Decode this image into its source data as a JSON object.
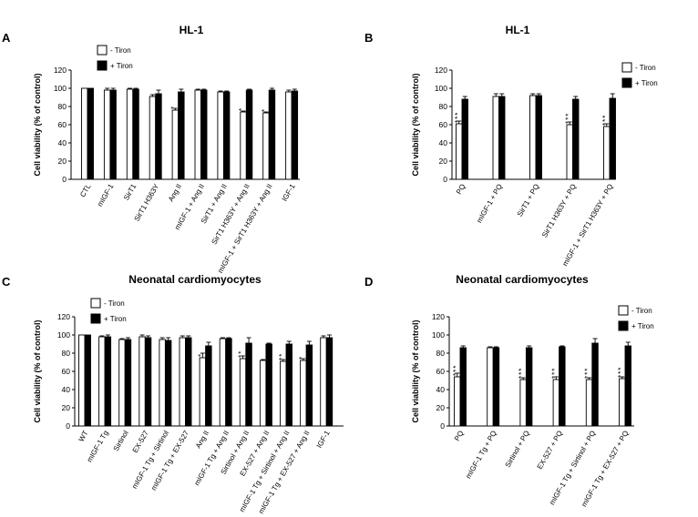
{
  "figure": {
    "legend": {
      "minus": "- Tiron",
      "plus": "+ Tiron"
    },
    "colors": {
      "minus": "#ffffff",
      "plus": "#000000",
      "edge": "#000000"
    }
  },
  "chart_data": [
    {
      "panel": "A",
      "title": "HL-1",
      "type": "bar",
      "ylabel": "Cell viability (% of control)",
      "ylim": [
        0,
        120
      ],
      "yticks": [
        0,
        20,
        40,
        60,
        80,
        100,
        120
      ],
      "legend_position": "top-left",
      "categories": [
        "CTL",
        "mIGF-1",
        "SirT1",
        "SirT1 H363Y",
        "Ang II",
        "mIGF-1 + Ang II",
        "SirT1 + Ang II",
        "SirT1 H363Y + Ang II",
        "mIGF-1 + SirT1 H363Y + Ang II",
        "IGF-1"
      ],
      "series": [
        {
          "name": "- Tiron",
          "values": [
            100,
            98,
            99,
            91,
            76,
            98,
            96,
            74,
            73,
            96
          ],
          "errors": [
            0,
            2,
            1,
            2,
            2,
            1,
            1,
            1,
            1,
            2
          ],
          "sig": [
            "",
            "",
            "",
            "",
            "*",
            "",
            "",
            "*",
            "*",
            ""
          ]
        },
        {
          "name": "+ Tiron",
          "values": [
            100,
            98,
            99,
            94,
            96,
            98,
            96,
            98,
            98,
            97
          ],
          "errors": [
            0,
            2,
            1,
            4,
            3,
            1,
            1,
            1,
            2,
            2
          ],
          "sig": [
            "",
            "",
            "",
            "",
            "",
            "",
            "",
            "",
            "",
            ""
          ]
        }
      ]
    },
    {
      "panel": "B",
      "title": "HL-1",
      "type": "bar",
      "ylabel": "Cell viability (% of control)",
      "ylim": [
        0,
        120
      ],
      "yticks": [
        0,
        20,
        40,
        60,
        80,
        100,
        120
      ],
      "legend_position": "top-right",
      "categories": [
        "PQ",
        "mIGF-1 + PQ",
        "SirT1 + PQ",
        "SirT1 H363Y + PQ",
        "mIGF-1 + SirT1 H363Y + PQ"
      ],
      "series": [
        {
          "name": "- Tiron",
          "values": [
            61,
            91,
            92,
            60,
            58
          ],
          "errors": [
            3,
            3,
            2,
            3,
            3
          ],
          "sig": [
            "***",
            "",
            "",
            "***",
            "***"
          ]
        },
        {
          "name": "+ Tiron",
          "values": [
            88,
            91,
            92,
            88,
            89
          ],
          "errors": [
            3,
            3,
            2,
            3,
            5
          ],
          "sig": [
            "",
            "",
            "",
            "",
            ""
          ]
        }
      ]
    },
    {
      "panel": "C",
      "title": "Neonatal cardiomyocytes",
      "type": "bar",
      "ylabel": "Cell viability (% of control)",
      "ylim": [
        0,
        120
      ],
      "yticks": [
        0,
        20,
        40,
        60,
        80,
        100,
        120
      ],
      "legend_position": "top-left",
      "categories": [
        "WT",
        "mIGF-1 Tg",
        "Sirtinol",
        "EX-527",
        "mIGF-1 Tg + Sirtinol",
        "mIGF-1 Tg + EX-527",
        "Ang II",
        "mIGF-1 Tg + Ang II",
        "Sirtinol + Ang II",
        "EX-527 + Ang II",
        "mIGF-1 Tg + Sirtinol + Ang II",
        "mIGF-1 Tg + EX-527 + Ang II",
        "IGF-1"
      ],
      "series": [
        {
          "name": "- Tiron",
          "values": [
            100,
            98,
            95,
            98,
            95,
            97,
            75,
            96,
            74,
            72,
            71,
            72,
            97
          ],
          "errors": [
            0,
            1,
            1,
            2,
            2,
            2,
            5,
            1,
            3,
            1,
            2,
            2,
            2
          ],
          "sig": [
            "",
            "",
            "",
            "",
            "",
            "",
            "*",
            "",
            "**",
            "",
            "**",
            "*",
            ""
          ]
        },
        {
          "name": "+ Tiron",
          "values": [
            100,
            98,
            95,
            97,
            94,
            97,
            88,
            96,
            91,
            90,
            90,
            89,
            97
          ],
          "errors": [
            0,
            2,
            2,
            2,
            3,
            2,
            4,
            1,
            6,
            1,
            3,
            4,
            3
          ],
          "sig": [
            "",
            "",
            "",
            "",
            "",
            "",
            "",
            "",
            "",
            "",
            "",
            "",
            ""
          ]
        }
      ]
    },
    {
      "panel": "D",
      "title": "Neonatal cardiomyocytes",
      "type": "bar",
      "ylabel": "Cell viability (% of control)",
      "ylim": [
        0,
        120
      ],
      "yticks": [
        0,
        20,
        40,
        60,
        80,
        100,
        120
      ],
      "legend_position": "top-right",
      "categories": [
        "PQ",
        "mIGF-1 Tg + PQ",
        "Sirtinol + PQ",
        "EX-527 + PQ",
        "mIGF-1 Tg + Sirtinol + PQ",
        "mIGF-1 Tg + EX-527 + PQ"
      ],
      "series": [
        {
          "name": "- Tiron",
          "values": [
            54,
            86,
            51,
            51,
            51,
            52
          ],
          "errors": [
            4,
            1,
            2,
            3,
            2,
            2
          ],
          "sig": [
            "***",
            "",
            "***",
            "***",
            "***",
            "***"
          ]
        },
        {
          "name": "+ Tiron",
          "values": [
            86,
            86,
            86,
            87,
            91,
            88
          ],
          "errors": [
            2,
            1,
            2,
            1,
            5,
            4
          ],
          "sig": [
            "",
            "",
            "",
            "",
            "",
            ""
          ]
        }
      ]
    }
  ]
}
